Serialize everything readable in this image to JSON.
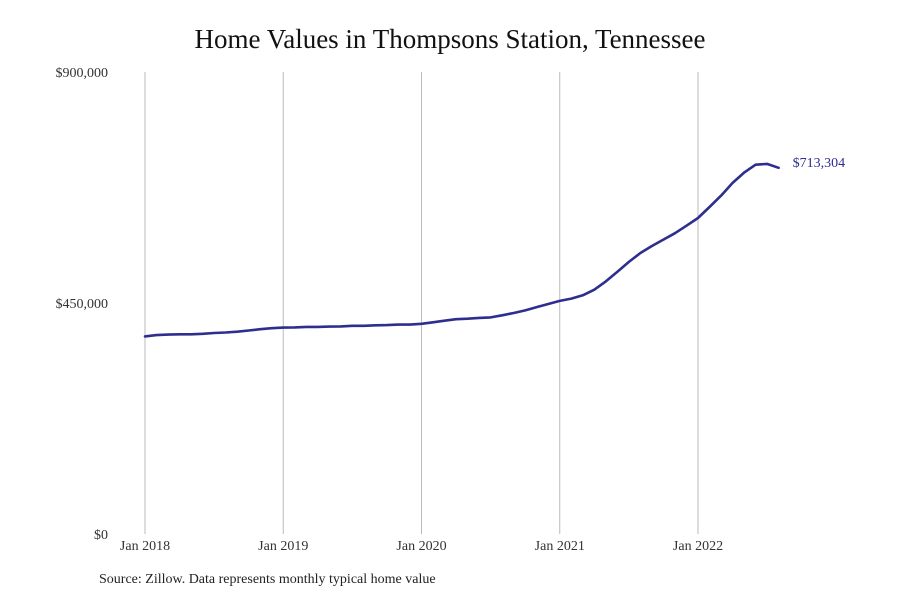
{
  "chart_data": {
    "type": "line",
    "title": "Home Values in Thompsons Station, Tennessee",
    "xlabel": "",
    "ylabel": "",
    "ylim": [
      0,
      900000
    ],
    "yticks": [
      {
        "value": 0,
        "label": "$0"
      },
      {
        "value": 450000,
        "label": "$450,000"
      },
      {
        "value": 900000,
        "label": "$900,000"
      }
    ],
    "xticks": [
      {
        "value": "2018-01",
        "label": "Jan 2018"
      },
      {
        "value": "2019-01",
        "label": "Jan 2019"
      },
      {
        "value": "2020-01",
        "label": "Jan 2020"
      },
      {
        "value": "2021-01",
        "label": "Jan 2021"
      },
      {
        "value": "2022-01",
        "label": "Jan 2022"
      }
    ],
    "grid": "vertical",
    "line_color": "#2e2e8f",
    "end_label": "$713,304",
    "series": [
      {
        "x": [
          "2018-01",
          "2018-02",
          "2018-03",
          "2018-04",
          "2018-05",
          "2018-06",
          "2018-07",
          "2018-08",
          "2018-09",
          "2018-10",
          "2018-11",
          "2018-12",
          "2019-01",
          "2019-02",
          "2019-03",
          "2019-04",
          "2019-05",
          "2019-06",
          "2019-07",
          "2019-08",
          "2019-09",
          "2019-10",
          "2019-11",
          "2019-12",
          "2020-01",
          "2020-02",
          "2020-03",
          "2020-04",
          "2020-05",
          "2020-06",
          "2020-07",
          "2020-08",
          "2020-09",
          "2020-10",
          "2020-11",
          "2020-12",
          "2021-01",
          "2021-02",
          "2021-03",
          "2021-04",
          "2021-05",
          "2021-06",
          "2021-07",
          "2021-08",
          "2021-09",
          "2021-10",
          "2021-11",
          "2021-12",
          "2022-01",
          "2022-02",
          "2022-03",
          "2022-04",
          "2022-05",
          "2022-06",
          "2022-07",
          "2022-08"
        ],
        "values": [
          385000,
          387500,
          388500,
          389000,
          389000,
          390000,
          391500,
          392500,
          394000,
          396500,
          399000,
          401000,
          402000,
          402500,
          403500,
          403500,
          404000,
          404500,
          405500,
          405500,
          406500,
          407000,
          408000,
          408000,
          409500,
          412500,
          415500,
          418500,
          419500,
          421000,
          422000,
          426000,
          430500,
          435500,
          442000,
          448000,
          454000,
          458500,
          465000,
          476000,
          492000,
          511000,
          530000,
          547500,
          561000,
          573500,
          586000,
          600500,
          615500,
          637000,
          659000,
          684000,
          704000,
          719500,
          721000,
          713304
        ]
      }
    ]
  },
  "source": "Source: Zillow. Data represents monthly typical home value"
}
